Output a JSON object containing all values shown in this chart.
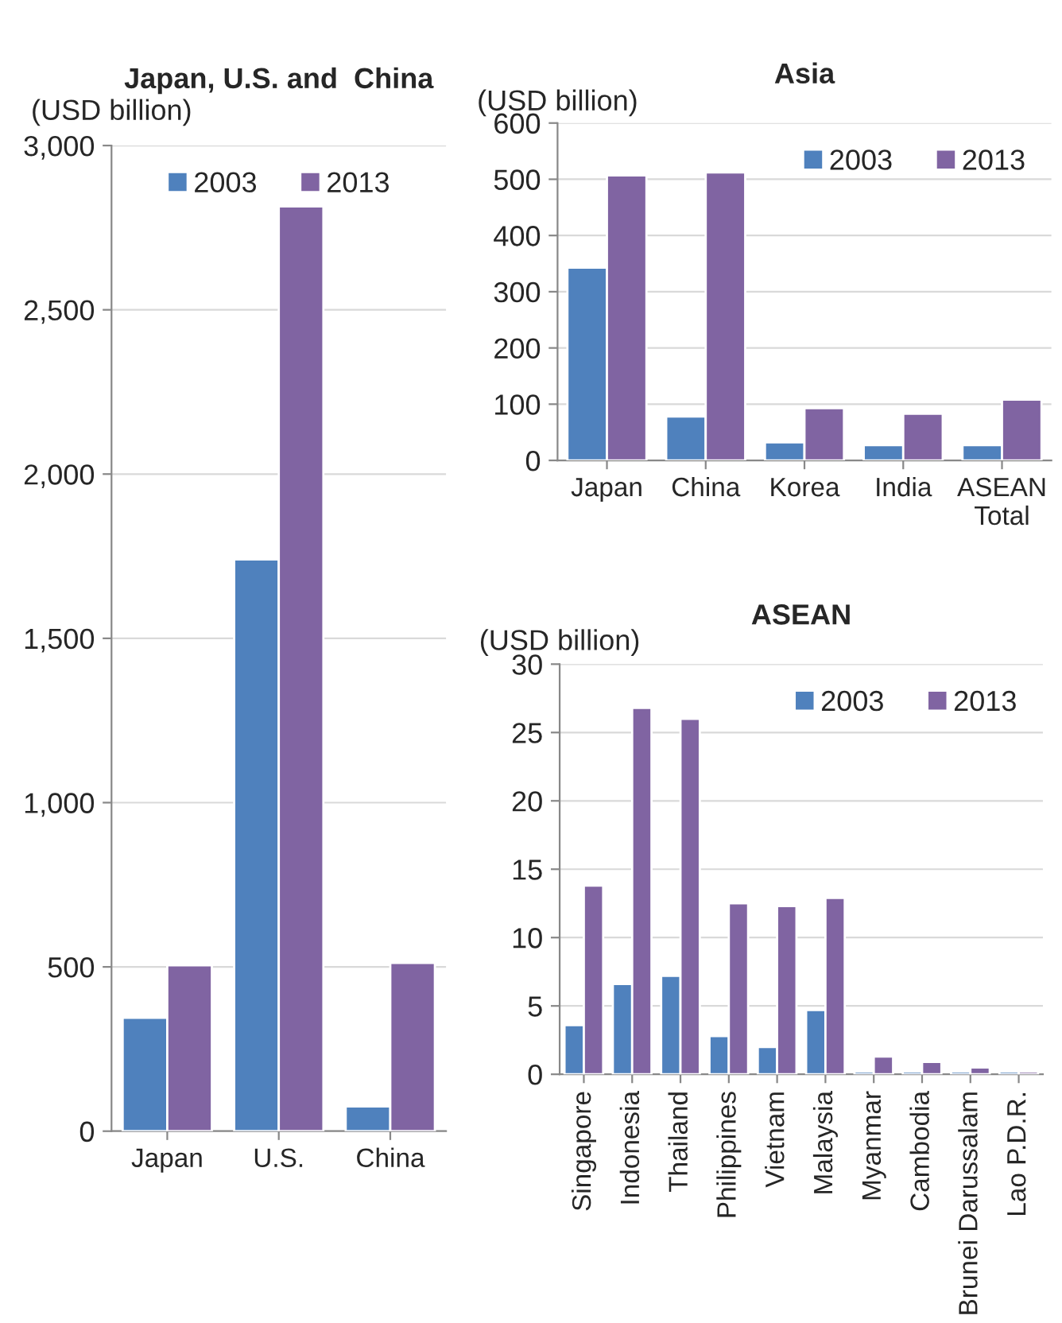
{
  "chart_data": [
    {
      "type": "bar",
      "title": "Japan, U.S. and  China",
      "ylabel": "(USD billion)",
      "categories": [
        "Japan",
        "U.S.",
        "China"
      ],
      "series": [
        {
          "name": "2003",
          "color": "#4f81bd",
          "values": [
            345,
            1740,
            75
          ]
        },
        {
          "name": "2013",
          "color": "#8064a2",
          "values": [
            505,
            2815,
            512
          ]
        }
      ],
      "ylim": [
        0,
        3000
      ],
      "yticks": [
        0,
        {
          "value": 500,
          "label": "500"
        },
        {
          "value": 1000,
          "label": "1,000"
        },
        {
          "value": 1500,
          "label": "1,500"
        },
        {
          "value": 2000,
          "label": "2,000"
        },
        {
          "value": 2500,
          "label": "2,500"
        },
        {
          "value": 3000,
          "label": "3,000"
        }
      ],
      "grid": "y",
      "legend": "top"
    },
    {
      "type": "bar",
      "title": "Asia",
      "ylabel": "(USD billion)",
      "categories": [
        "Japan",
        "China",
        "Korea",
        "India",
        "ASEAN\nTotal"
      ],
      "series": [
        {
          "name": "2003",
          "color": "#4f81bd",
          "values": [
            343,
            78,
            32,
            27,
            27
          ]
        },
        {
          "name": "2013",
          "color": "#8064a2",
          "values": [
            507,
            512,
            93,
            83,
            108
          ]
        }
      ],
      "ylim": [
        0,
        600
      ],
      "yticks": [
        0,
        100,
        200,
        300,
        400,
        500,
        600
      ],
      "grid": "y",
      "legend": "top right"
    },
    {
      "type": "bar",
      "title": "ASEAN",
      "ylabel": "(USD billion)",
      "categories": [
        "Singapore",
        "Indonesia",
        "Thailand",
        "Philippines",
        "Vietnam",
        "Malaysia",
        "Myanmar",
        "Cambodia",
        "Brunei Darussalam",
        "Lao P.D.R."
      ],
      "series": [
        {
          "name": "2003",
          "color": "#4f81bd",
          "values": [
            3.6,
            6.6,
            7.2,
            2.8,
            2.0,
            4.7,
            0.2,
            0.2,
            0.2,
            0.2
          ]
        },
        {
          "name": "2013",
          "color": "#8064a2",
          "values": [
            13.8,
            26.8,
            26.0,
            12.5,
            12.3,
            12.9,
            1.3,
            0.9,
            0.5,
            0.2
          ]
        }
      ],
      "ylim": [
        0,
        30
      ],
      "yticks": [
        0,
        5,
        10,
        15,
        20,
        25,
        30
      ],
      "grid": "y",
      "legend": "top right"
    }
  ]
}
